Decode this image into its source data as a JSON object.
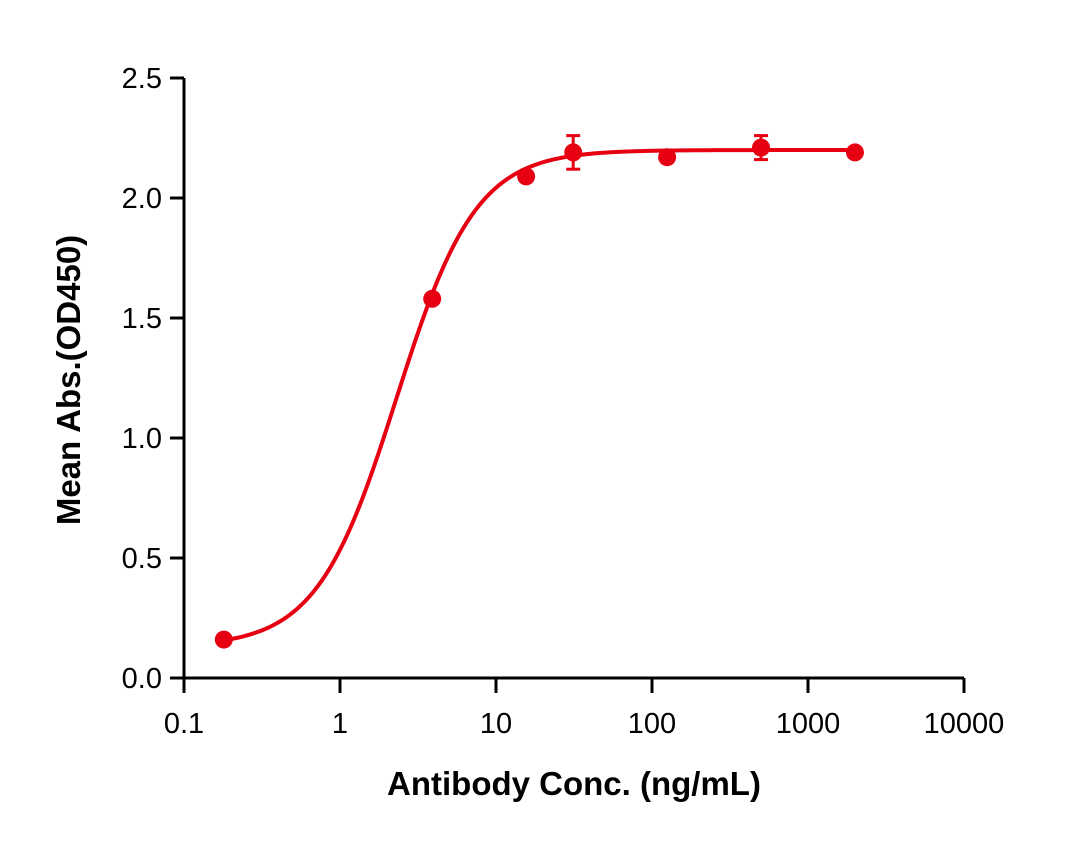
{
  "chart_data": {
    "type": "scatter",
    "title": "",
    "xlabel": "Antibody Conc. (ng/mL)",
    "ylabel": "Mean Abs.(OD450)",
    "xscale": "log",
    "xlim": [
      0.1,
      10000
    ],
    "ylim": [
      0.0,
      2.5
    ],
    "x_ticks": [
      "0.1",
      "1",
      "10",
      "100",
      "1000",
      "10000"
    ],
    "y_ticks": [
      "0.0",
      "0.5",
      "1.0",
      "1.5",
      "2.0",
      "2.5"
    ],
    "grid": false,
    "legend": null,
    "color": "#e60012",
    "series": [
      {
        "name": "Mean Abs.",
        "x": [
          0.18,
          3.9,
          15.6,
          31.25,
          125,
          500,
          2000
        ],
        "y": [
          0.16,
          1.58,
          2.09,
          2.19,
          2.17,
          2.21,
          2.19
        ],
        "error": [
          0.0,
          0.0,
          0.0,
          0.07,
          0.0,
          0.05,
          0.0
        ]
      }
    ],
    "fit": {
      "model": "4PL",
      "bottom": 0.13,
      "top": 2.2,
      "ec50": 2.3,
      "hill": 1.7
    }
  }
}
